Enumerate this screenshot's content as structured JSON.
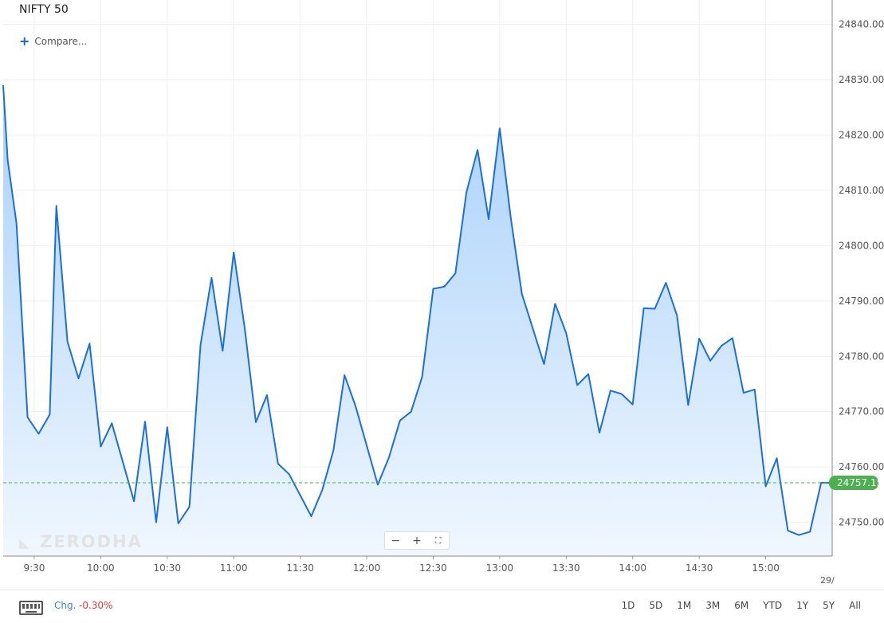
{
  "header": {
    "title": "NIFTY 50",
    "compare_label": "Compare..."
  },
  "watermark": "ZERODHA",
  "zoom": {
    "minus": "−",
    "plus": "+",
    "fit": "⛶"
  },
  "footer": {
    "change_label": "Chg.",
    "change_value": "-0.30%",
    "ranges": [
      "1D",
      "5D",
      "1M",
      "3M",
      "6M",
      "YTD",
      "1Y",
      "5Y",
      "All"
    ]
  },
  "colors": {
    "line": "#1a6fd8",
    "fill_top": "#a9d1fb",
    "fill_bottom": "#f0f7fe",
    "grid": "#efefef",
    "current_price": "#4caf50",
    "change_negative": "#e53935"
  },
  "chart_data": {
    "type": "area",
    "title": "NIFTY 50",
    "xlabel": "",
    "ylabel": "",
    "ylim": [
      24743.9,
      24844.4
    ],
    "xlim": [
      "09:16",
      "15:30"
    ],
    "grid": true,
    "current_price": 24757.15,
    "current_price_label": "24757.15",
    "y_ticks": [
      "24750.00",
      "24760.00",
      "24770.00",
      "24780.00",
      "24790.00",
      "24800.00",
      "24810.00",
      "24820.00",
      "24830.00",
      "24840.00"
    ],
    "x_ticks": [
      "9:30",
      "10:00",
      "10:30",
      "11:00",
      "11:30",
      "12:00",
      "12:30",
      "13:00",
      "13:30",
      "14:00",
      "14:30",
      "15:00"
    ],
    "x_tick_times": [
      "09:30",
      "10:00",
      "10:30",
      "11:00",
      "11:30",
      "12:00",
      "12:30",
      "13:00",
      "13:30",
      "14:00",
      "14:30",
      "15:00"
    ],
    "next_day_label": "29/",
    "series": [
      {
        "times": [
          "09:16",
          "09:18",
          "09:22",
          "09:27",
          "09:32",
          "09:37",
          "09:40",
          "09:45",
          "09:50",
          "09:55",
          "10:00",
          "10:05",
          "10:15",
          "10:20",
          "10:25",
          "10:30",
          "10:35",
          "10:40",
          "10:45",
          "10:50",
          "10:55",
          "11:00",
          "11:05",
          "11:10",
          "11:15",
          "11:20",
          "11:25",
          "11:35",
          "11:40",
          "11:45",
          "11:50",
          "11:55",
          "12:05",
          "12:10",
          "12:15",
          "12:20",
          "12:25",
          "12:30",
          "12:35",
          "12:40",
          "12:45",
          "12:50",
          "12:55",
          "13:00",
          "13:05",
          "13:10",
          "13:20",
          "13:25",
          "13:30",
          "13:35",
          "13:40",
          "13:45",
          "13:50",
          "13:55",
          "14:00",
          "14:05",
          "14:10",
          "14:15",
          "14:20",
          "14:25",
          "14:30",
          "14:35",
          "14:40",
          "14:45",
          "14:50",
          "14:55",
          "15:00",
          "15:05",
          "15:10",
          "15:15",
          "15:20",
          "15:25",
          "15:30"
        ],
        "values": [
          24829.0,
          24815.5,
          24804.0,
          24769.0,
          24766.0,
          24769.5,
          24807.2,
          24782.7,
          24776.0,
          24782.3,
          24763.7,
          24767.9,
          24753.8,
          24768.2,
          24750.0,
          24767.2,
          24749.8,
          24752.8,
          24782.0,
          24794.2,
          24781.0,
          24798.8,
          24785.0,
          24768.1,
          24773.0,
          24760.6,
          24758.7,
          24751.1,
          24755.9,
          24763.0,
          24776.6,
          24771.0,
          24756.8,
          24761.7,
          24768.4,
          24770.0,
          24776.3,
          24792.2,
          24792.6,
          24795.0,
          24809.7,
          24817.3,
          24804.8,
          24821.2,
          24805.0,
          24791.3,
          24778.6,
          24789.5,
          24784.2,
          24774.8,
          24776.8,
          24766.2,
          24773.8,
          24773.2,
          24771.3,
          24788.7,
          24788.6,
          24793.3,
          24787.4,
          24771.2,
          24783.2,
          24779.2,
          24781.9,
          24783.3,
          24773.4,
          24774.0,
          24756.5,
          24761.6,
          24748.5,
          24747.7,
          24748.3,
          24757.15,
          24757.15
        ]
      }
    ]
  }
}
